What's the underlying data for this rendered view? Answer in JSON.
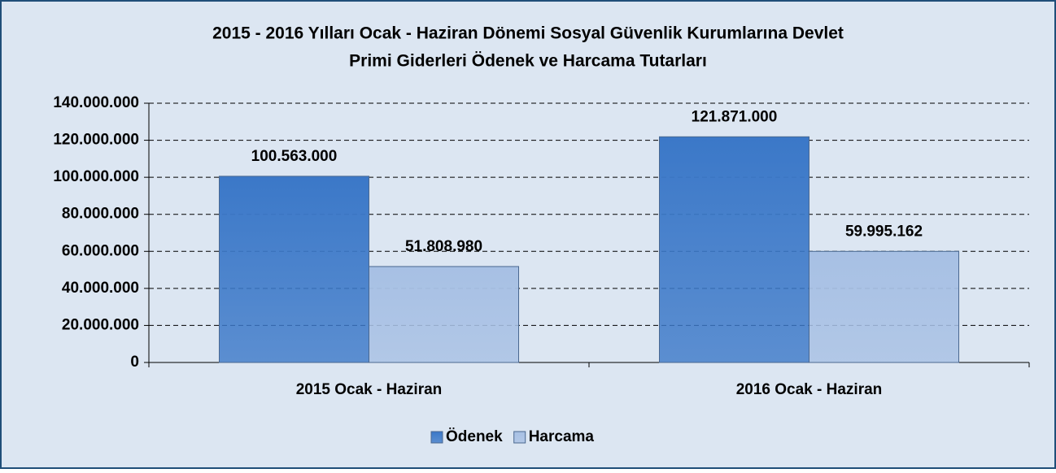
{
  "chart_data": {
    "type": "bar",
    "title": [
      "2015 - 2016 Yılları Ocak - Haziran Dönemi Sosyal Güvenlik Kurumlarına Devlet",
      "Primi Giderleri Ödenek ve Harcama Tutarları"
    ],
    "categories": [
      "2015 Ocak - Haziran",
      "2016 Ocak - Haziran"
    ],
    "series": [
      {
        "name": "Ödenek",
        "color": "#3b78c8",
        "values": [
          100563000,
          121871000
        ],
        "value_labels": [
          "100.563.000",
          "121.871.000"
        ]
      },
      {
        "name": "Harcama",
        "color": "#a7c0e4",
        "values": [
          51808980,
          59995162
        ],
        "value_labels": [
          "51.808.980",
          "59.995.162"
        ]
      }
    ],
    "ylim": [
      0,
      140000000
    ],
    "yticks": [
      0,
      {
        "value": 20000000,
        "label": "20.000.000"
      },
      {
        "value": 40000000,
        "label": "40.000.000"
      },
      {
        "value": 60000000,
        "label": "60.000.000"
      },
      {
        "value": 80000000,
        "label": "80.000.000"
      },
      {
        "value": 100000000,
        "label": "100.000.000"
      },
      {
        "value": 120000000,
        "label": "120.000.000"
      },
      {
        "value": 140000000,
        "label": "140.000.000"
      }
    ],
    "grid": true,
    "legend": "bottom"
  }
}
